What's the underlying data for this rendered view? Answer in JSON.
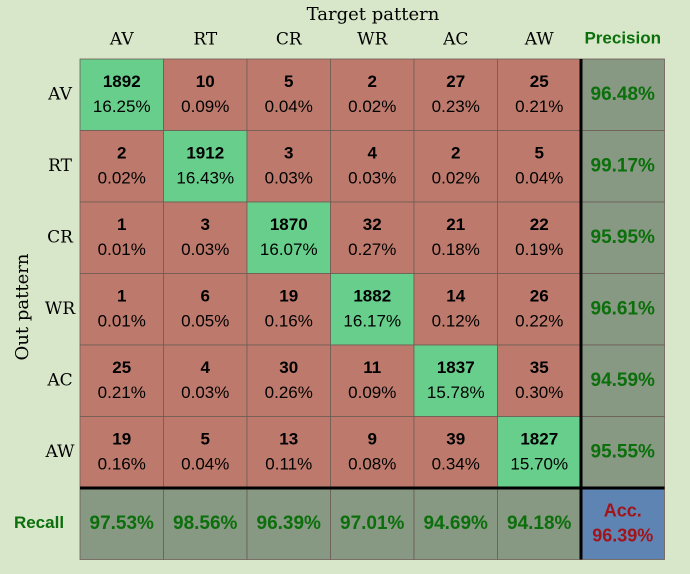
{
  "chart_data": {
    "type": "heatmap",
    "title": "",
    "xlabel": "Target pattern",
    "ylabel": "Out pattern",
    "columns": [
      "AV",
      "RT",
      "CR",
      "WR",
      "AC",
      "AW"
    ],
    "rows": [
      "AV",
      "RT",
      "CR",
      "WR",
      "AC",
      "AW"
    ],
    "counts": [
      [
        1892,
        10,
        5,
        2,
        27,
        25
      ],
      [
        2,
        1912,
        3,
        4,
        2,
        5
      ],
      [
        1,
        3,
        1870,
        32,
        21,
        22
      ],
      [
        1,
        6,
        19,
        1882,
        14,
        26
      ],
      [
        25,
        4,
        30,
        11,
        1837,
        35
      ],
      [
        19,
        5,
        13,
        9,
        39,
        1827
      ]
    ],
    "percents": [
      [
        "16.25%",
        "0.09%",
        "0.04%",
        "0.02%",
        "0.23%",
        "0.21%"
      ],
      [
        "0.02%",
        "16.43%",
        "0.03%",
        "0.03%",
        "0.02%",
        "0.04%"
      ],
      [
        "0.01%",
        "0.03%",
        "16.07%",
        "0.27%",
        "0.18%",
        "0.19%"
      ],
      [
        "0.01%",
        "0.05%",
        "0.16%",
        "16.17%",
        "0.12%",
        "0.22%"
      ],
      [
        "0.21%",
        "0.03%",
        "0.26%",
        "0.09%",
        "15.78%",
        "0.30%"
      ],
      [
        "0.16%",
        "0.04%",
        "0.11%",
        "0.08%",
        "0.34%",
        "15.70%"
      ]
    ],
    "precision_label": "Precision",
    "precision": [
      "96.48%",
      "99.17%",
      "95.95%",
      "96.61%",
      "94.59%",
      "95.55%"
    ],
    "recall_label": "Recall",
    "recall": [
      "97.53%",
      "98.56%",
      "96.39%",
      "97.01%",
      "94.69%",
      "94.18%"
    ],
    "accuracy_label": "Acc.",
    "accuracy": "96.39%",
    "colors": {
      "background": "#d8e6c9",
      "diagonal": "#67ce8c",
      "offdiagonal": "#bd7a6c",
      "summary": "#879883",
      "accuracy": "#5e84b4",
      "summary_text": "#0b6f0b",
      "accuracy_text": "#a1141a",
      "cell_text": "#000000"
    }
  }
}
